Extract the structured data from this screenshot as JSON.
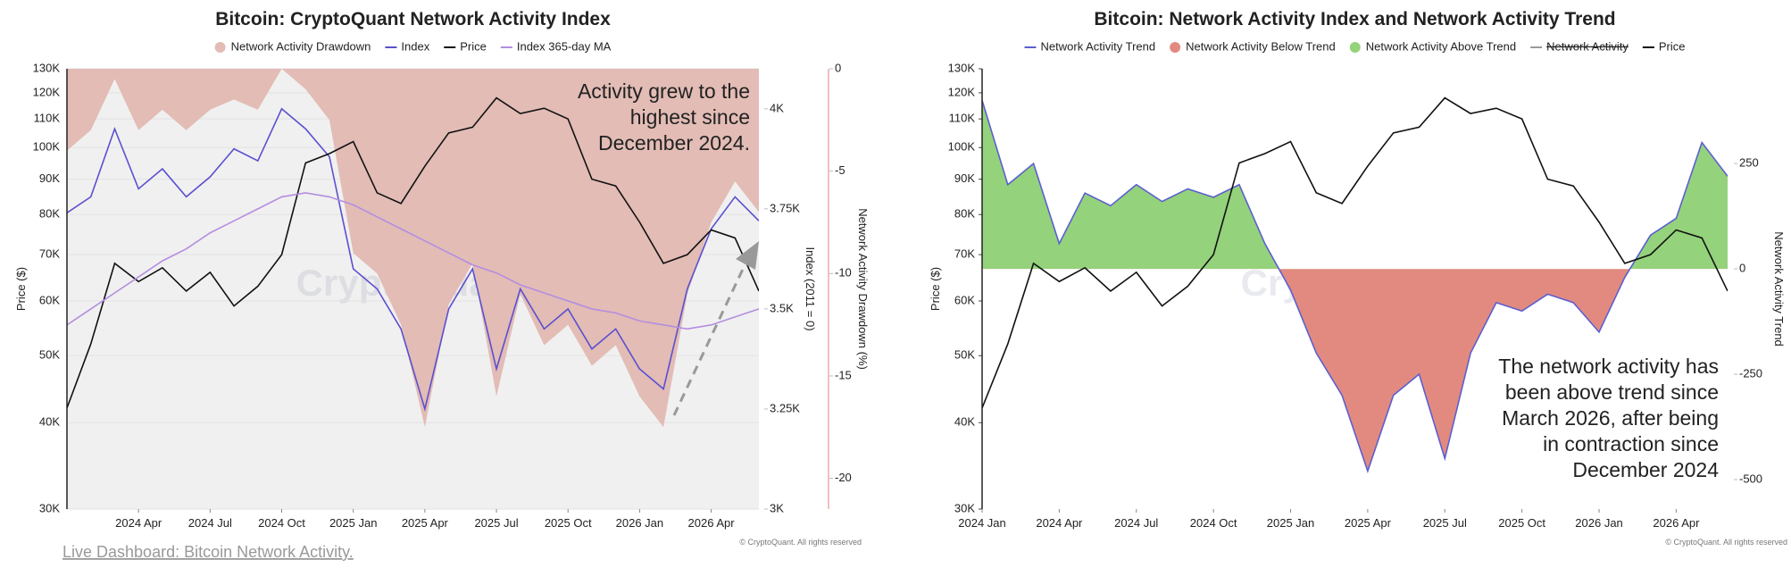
{
  "chart_data": [
    {
      "type": "line",
      "title": "Bitcoin: CryptoQuant Network Activity Index",
      "legend": "top",
      "watermark": "CryptoQuant",
      "copyright": "© CryptoQuant. All rights reserved",
      "annotation": [
        "Activity grew to the",
        "highest since",
        "December 2024."
      ],
      "ylabel": "Price ($)",
      "y2label": "Index (2011 = 0)",
      "y3label": "Network Activity Drawdown (%)",
      "grid": true,
      "ylog": true,
      "x": [
        "2024-01",
        "2024-02",
        "2024-03",
        "2024-04",
        "2024-05",
        "2024-06",
        "2024-07",
        "2024-08",
        "2024-09",
        "2024-10",
        "2024-11",
        "2024-12",
        "2025-01",
        "2025-02",
        "2025-03",
        "2025-04",
        "2025-05",
        "2025-06",
        "2025-07",
        "2025-08",
        "2025-09",
        "2025-10",
        "2025-11",
        "2025-12",
        "2026-01",
        "2026-02",
        "2026-03",
        "2026-04",
        "2026-05",
        "2026-06"
      ],
      "xlim": [
        "2024-01",
        "2026-06"
      ],
      "xticks": [
        {
          "value": "2024-04",
          "label": "2024 Apr"
        },
        {
          "value": "2024-07",
          "label": "2024 Jul"
        },
        {
          "value": "2024-10",
          "label": "2024 Oct"
        },
        {
          "value": "2025-01",
          "label": "2025 Jan"
        },
        {
          "value": "2025-04",
          "label": "2025 Apr"
        },
        {
          "value": "2025-07",
          "label": "2025 Jul"
        },
        {
          "value": "2025-10",
          "label": "2025 Oct"
        },
        {
          "value": "2026-01",
          "label": "2026 Jan"
        },
        {
          "value": "2026-04",
          "label": "2026 Apr"
        }
      ],
      "ylim": [
        30000,
        130000
      ],
      "yticks": [
        {
          "value": 30000,
          "label": "30K"
        },
        {
          "value": 40000,
          "label": "40K"
        },
        {
          "value": 50000,
          "label": "50K"
        },
        {
          "value": 60000,
          "label": "60K"
        },
        {
          "value": 70000,
          "label": "70K"
        },
        {
          "value": 80000,
          "label": "80K"
        },
        {
          "value": 90000,
          "label": "90K"
        },
        {
          "value": 100000,
          "label": "100K"
        },
        {
          "value": 110000,
          "label": "110K"
        },
        {
          "value": 120000,
          "label": "120K"
        },
        {
          "value": 130000,
          "label": "130K"
        }
      ],
      "y2lim": [
        3000,
        4100
      ],
      "y2ticks": [
        {
          "value": 3000,
          "label": "3K"
        },
        {
          "value": 3250,
          "label": "3.25K"
        },
        {
          "value": 3500,
          "label": "3.5K"
        },
        {
          "value": 3750,
          "label": "3.75K"
        },
        {
          "value": 4000,
          "label": "4K"
        }
      ],
      "y3lim": [
        -21.5,
        0
      ],
      "y3ticks": [
        0,
        -5,
        -10,
        -15,
        -20
      ],
      "series": [
        {
          "name": "Network Activity Drawdown",
          "kind": "area",
          "marker": "dot",
          "axis": "y3",
          "color": "#e2bcb5",
          "values": [
            -4,
            -3,
            -0.5,
            -3,
            -2,
            -3,
            -2,
            -1.5,
            -2,
            0,
            -1,
            -2.5,
            -9,
            -10,
            -12.5,
            -17.5,
            -11.5,
            -9.5,
            -16,
            -11,
            -13.5,
            -12.5,
            -14.5,
            -13.5,
            -16,
            -17.5,
            -11,
            -7.5,
            -5.5,
            -7
          ]
        },
        {
          "name": "Index",
          "kind": "line",
          "marker": "line",
          "axis": "y2",
          "color": "#5a4fd0",
          "values": [
            3740,
            3780,
            3950,
            3800,
            3850,
            3780,
            3830,
            3900,
            3870,
            4000,
            3950,
            3880,
            3600,
            3550,
            3450,
            3250,
            3500,
            3600,
            3350,
            3550,
            3450,
            3500,
            3400,
            3450,
            3350,
            3300,
            3550,
            3700,
            3780,
            3720
          ]
        },
        {
          "name": "Price",
          "kind": "line",
          "marker": "line",
          "axis": "y",
          "color": "#111111",
          "values": [
            42000,
            52000,
            68000,
            64000,
            67000,
            62000,
            66000,
            59000,
            63000,
            70000,
            95000,
            98000,
            102000,
            86000,
            83000,
            94000,
            105000,
            107000,
            118000,
            112000,
            114000,
            110000,
            90000,
            88000,
            78000,
            68000,
            70000,
            76000,
            74000,
            62000
          ]
        },
        {
          "name": "Index 365-day MA",
          "kind": "line",
          "marker": "line",
          "axis": "y2",
          "color": "#b48ee0",
          "values": [
            3460,
            3500,
            3540,
            3580,
            3620,
            3650,
            3690,
            3720,
            3750,
            3780,
            3790,
            3780,
            3760,
            3730,
            3700,
            3670,
            3640,
            3610,
            3590,
            3560,
            3540,
            3520,
            3500,
            3490,
            3470,
            3460,
            3450,
            3460,
            3480,
            3500
          ]
        }
      ]
    },
    {
      "type": "line",
      "title": "Bitcoin: Network Activity Index and Network Activity Trend",
      "legend": "top",
      "watermark": "CryptoQuant",
      "copyright": "© CryptoQuant. All rights reserved",
      "annotation": [
        "The network activity has",
        "been above trend since",
        "March 2026, after being",
        "in contraction since",
        "December 2024"
      ],
      "ylabel": "Price ($)",
      "y2label": "Network Activity Trend",
      "grid": false,
      "ylog": true,
      "x": [
        "2024-01",
        "2024-02",
        "2024-03",
        "2024-04",
        "2024-05",
        "2024-06",
        "2024-07",
        "2024-08",
        "2024-09",
        "2024-10",
        "2024-11",
        "2024-12",
        "2025-01",
        "2025-02",
        "2025-03",
        "2025-04",
        "2025-05",
        "2025-06",
        "2025-07",
        "2025-08",
        "2025-09",
        "2025-10",
        "2025-11",
        "2025-12",
        "2026-01",
        "2026-02",
        "2026-03",
        "2026-04",
        "2026-05",
        "2026-06"
      ],
      "xlim": [
        "2024-01",
        "2026-06"
      ],
      "xticks": [
        {
          "value": "2024-01",
          "label": "2024 Jan"
        },
        {
          "value": "2024-04",
          "label": "2024 Apr"
        },
        {
          "value": "2024-07",
          "label": "2024 Jul"
        },
        {
          "value": "2024-10",
          "label": "2024 Oct"
        },
        {
          "value": "2025-01",
          "label": "2025 Jan"
        },
        {
          "value": "2025-04",
          "label": "2025 Apr"
        },
        {
          "value": "2025-07",
          "label": "2025 Jul"
        },
        {
          "value": "2025-10",
          "label": "2025 Oct"
        },
        {
          "value": "2026-01",
          "label": "2026 Jan"
        },
        {
          "value": "2026-04",
          "label": "2026 Apr"
        }
      ],
      "ylim": [
        30000,
        130000
      ],
      "yticks": [
        {
          "value": 30000,
          "label": "30K"
        },
        {
          "value": 40000,
          "label": "40K"
        },
        {
          "value": 50000,
          "label": "50K"
        },
        {
          "value": 60000,
          "label": "60K"
        },
        {
          "value": 70000,
          "label": "70K"
        },
        {
          "value": 80000,
          "label": "80K"
        },
        {
          "value": 90000,
          "label": "90K"
        },
        {
          "value": 100000,
          "label": "100K"
        },
        {
          "value": 110000,
          "label": "110K"
        },
        {
          "value": 120000,
          "label": "120K"
        },
        {
          "value": 130000,
          "label": "130K"
        }
      ],
      "y2lim": [
        -570,
        475
      ],
      "y2ticks": [
        250,
        0,
        -250,
        -500
      ],
      "series": [
        {
          "name": "Network Activity Trend",
          "kind": "line",
          "marker": "line",
          "axis": "y2",
          "color": "#5b5fd0",
          "values": [
            400,
            200,
            250,
            60,
            180,
            150,
            200,
            160,
            190,
            170,
            200,
            60,
            -50,
            -200,
            -300,
            -480,
            -300,
            -250,
            -450,
            -200,
            -80,
            -100,
            -60,
            -80,
            -150,
            -20,
            80,
            120,
            300,
            220
          ]
        },
        {
          "name": "Network Activity Below Trend",
          "kind": "region",
          "region": "below",
          "marker": "dot",
          "axis": "y2",
          "color": "#e38a80"
        },
        {
          "name": "Network Activity Above Trend",
          "kind": "region",
          "region": "above",
          "marker": "dot",
          "axis": "y2",
          "color": "#94d27c"
        },
        {
          "name": "Network Activity",
          "kind": "line",
          "marker": "line",
          "hidden": true,
          "color": "#9a9a9a"
        },
        {
          "name": "Price",
          "kind": "line",
          "marker": "line",
          "axis": "y",
          "color": "#111111",
          "values": [
            42000,
            52000,
            68000,
            64000,
            67000,
            62000,
            66000,
            59000,
            63000,
            70000,
            95000,
            98000,
            102000,
            86000,
            83000,
            94000,
            105000,
            107000,
            118000,
            112000,
            114000,
            110000,
            90000,
            88000,
            78000,
            68000,
            70000,
            76000,
            74000,
            62000
          ]
        }
      ]
    }
  ],
  "footer_link": "Live Dashboard: Bitcoin Network Activity."
}
